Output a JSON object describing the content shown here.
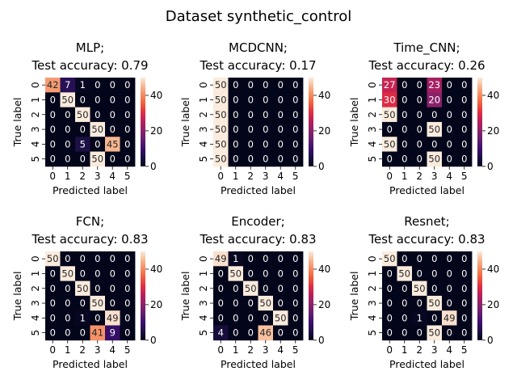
{
  "title": "Dataset synthetic_control",
  "chart_data": [
    {
      "type": "heatmap",
      "title_line1": "MLP;",
      "title_line2": "Test accuracy: 0.79",
      "xlabel": "Predicted label",
      "ylabel": "True label",
      "x_ticks": [
        "0",
        "1",
        "2",
        "3",
        "4",
        "5"
      ],
      "y_ticks": [
        "0",
        "1",
        "2",
        "3",
        "4",
        "5"
      ],
      "colorbar_ticks": [
        "40",
        "20",
        "0"
      ],
      "vmin": 0,
      "vmax": 50,
      "matrix": [
        [
          42,
          7,
          1,
          0,
          0,
          0
        ],
        [
          0,
          50,
          0,
          0,
          0,
          0
        ],
        [
          0,
          0,
          50,
          0,
          0,
          0
        ],
        [
          0,
          0,
          0,
          50,
          0,
          0
        ],
        [
          0,
          0,
          5,
          0,
          45,
          0
        ],
        [
          0,
          0,
          0,
          50,
          0,
          0
        ]
      ]
    },
    {
      "type": "heatmap",
      "title_line1": "MCDCNN;",
      "title_line2": "Test accuracy: 0.17",
      "xlabel": "Predicted label",
      "ylabel": "True label",
      "x_ticks": [
        "0",
        "1",
        "2",
        "3",
        "4",
        "5"
      ],
      "y_ticks": [
        "0",
        "1",
        "2",
        "3",
        "4",
        "5"
      ],
      "colorbar_ticks": [
        "40",
        "20",
        "0"
      ],
      "vmin": 0,
      "vmax": 50,
      "matrix": [
        [
          50,
          0,
          0,
          0,
          0,
          0
        ],
        [
          50,
          0,
          0,
          0,
          0,
          0
        ],
        [
          50,
          0,
          0,
          0,
          0,
          0
        ],
        [
          50,
          0,
          0,
          0,
          0,
          0
        ],
        [
          50,
          0,
          0,
          0,
          0,
          0
        ],
        [
          50,
          0,
          0,
          0,
          0,
          0
        ]
      ]
    },
    {
      "type": "heatmap",
      "title_line1": "Time_CNN;",
      "title_line2": "Test accuracy: 0.26",
      "xlabel": "Predicted label",
      "ylabel": "True label",
      "x_ticks": [
        "0",
        "1",
        "2",
        "3",
        "4",
        "5"
      ],
      "y_ticks": [
        "0",
        "1",
        "2",
        "3",
        "4",
        "5"
      ],
      "colorbar_ticks": [
        "40",
        "20",
        "0"
      ],
      "vmin": 0,
      "vmax": 50,
      "matrix": [
        [
          27,
          0,
          0,
          23,
          0,
          0
        ],
        [
          30,
          0,
          0,
          20,
          0,
          0
        ],
        [
          50,
          0,
          0,
          0,
          0,
          0
        ],
        [
          0,
          0,
          0,
          50,
          0,
          0
        ],
        [
          50,
          0,
          0,
          0,
          0,
          0
        ],
        [
          0,
          0,
          0,
          50,
          0,
          0
        ]
      ]
    },
    {
      "type": "heatmap",
      "title_line1": "FCN;",
      "title_line2": "Test accuracy: 0.83",
      "xlabel": "Predicted label",
      "ylabel": "True label",
      "x_ticks": [
        "0",
        "1",
        "2",
        "3",
        "4",
        "5"
      ],
      "y_ticks": [
        "0",
        "1",
        "2",
        "3",
        "4",
        "5"
      ],
      "colorbar_ticks": [
        "40",
        "20",
        "0"
      ],
      "vmin": 0,
      "vmax": 50,
      "matrix": [
        [
          50,
          0,
          0,
          0,
          0,
          0
        ],
        [
          0,
          50,
          0,
          0,
          0,
          0
        ],
        [
          0,
          0,
          50,
          0,
          0,
          0
        ],
        [
          0,
          0,
          0,
          50,
          0,
          0
        ],
        [
          0,
          0,
          1,
          0,
          49,
          0
        ],
        [
          0,
          0,
          0,
          41,
          9,
          0
        ]
      ]
    },
    {
      "type": "heatmap",
      "title_line1": "Encoder;",
      "title_line2": "Test accuracy: 0.83",
      "xlabel": "Predicted label",
      "ylabel": "True label",
      "x_ticks": [
        "0",
        "1",
        "2",
        "3",
        "4",
        "5"
      ],
      "y_ticks": [
        "0",
        "1",
        "2",
        "3",
        "4",
        "5"
      ],
      "colorbar_ticks": [
        "40",
        "20",
        "0"
      ],
      "vmin": 0,
      "vmax": 50,
      "matrix": [
        [
          49,
          1,
          0,
          0,
          0,
          0
        ],
        [
          0,
          50,
          0,
          0,
          0,
          0
        ],
        [
          0,
          0,
          50,
          0,
          0,
          0
        ],
        [
          0,
          0,
          0,
          50,
          0,
          0
        ],
        [
          0,
          0,
          0,
          0,
          50,
          0
        ],
        [
          4,
          0,
          0,
          46,
          0,
          0
        ]
      ]
    },
    {
      "type": "heatmap",
      "title_line1": "Resnet;",
      "title_line2": "Test accuracy: 0.83",
      "xlabel": "Predicted label",
      "ylabel": "True label",
      "x_ticks": [
        "0",
        "1",
        "2",
        "3",
        "4",
        "5"
      ],
      "y_ticks": [
        "0",
        "1",
        "2",
        "3",
        "4",
        "5"
      ],
      "colorbar_ticks": [
        "40",
        "20",
        "0"
      ],
      "vmin": 0,
      "vmax": 50,
      "matrix": [
        [
          50,
          0,
          0,
          0,
          0,
          0
        ],
        [
          0,
          50,
          0,
          0,
          0,
          0
        ],
        [
          0,
          0,
          50,
          0,
          0,
          0
        ],
        [
          0,
          0,
          0,
          50,
          0,
          0
        ],
        [
          0,
          0,
          1,
          0,
          49,
          0
        ],
        [
          0,
          0,
          0,
          50,
          0,
          0
        ]
      ]
    }
  ]
}
